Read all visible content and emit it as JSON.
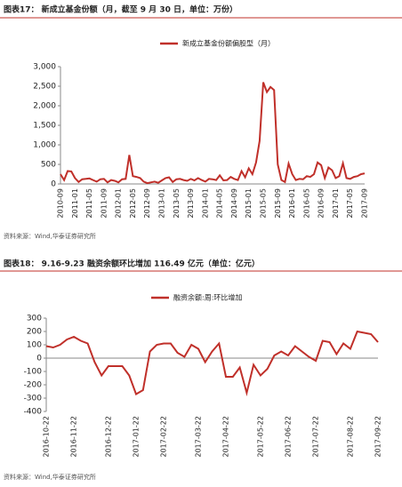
{
  "chart_data": [
    {
      "type": "line",
      "title": "图表17：  新成立基金份额（月，截至 9 月 30 日，单位：万份）",
      "source": "资料来源：Wind,华泰证券研究所",
      "categories": [
        "2010-09",
        null,
        null,
        null,
        "2011-01",
        null,
        null,
        null,
        "2011-05",
        null,
        null,
        null,
        "2011-09",
        null,
        null,
        null,
        "2012-01",
        null,
        null,
        null,
        "2012-05",
        null,
        null,
        null,
        "2012-09",
        null,
        null,
        null,
        "2013-01",
        null,
        null,
        null,
        "2013-05",
        null,
        null,
        null,
        "2013-09",
        null,
        null,
        null,
        "2014-01",
        null,
        null,
        null,
        "2014-05",
        null,
        null,
        null,
        "2014-09",
        null,
        null,
        null,
        "2015-01",
        null,
        null,
        null,
        "2015-05",
        null,
        null,
        null,
        "2015-09",
        null,
        null,
        null,
        "2016-01",
        null,
        null,
        null,
        "2016-05",
        null,
        null,
        null,
        "2016-09",
        null,
        null,
        null,
        "2017-01",
        null,
        null,
        null,
        "2017-05",
        null,
        null,
        null,
        "2017-09"
      ],
      "series": [
        {
          "name": "新成立基金份额偏股型（月）",
          "color": "#c0302a",
          "values": [
            250,
            100,
            330,
            320,
            150,
            50,
            120,
            130,
            140,
            100,
            60,
            120,
            130,
            40,
            100,
            80,
            40,
            120,
            130,
            740,
            200,
            180,
            150,
            60,
            20,
            40,
            60,
            30,
            90,
            150,
            170,
            50,
            120,
            130,
            100,
            80,
            130,
            90,
            150,
            100,
            60,
            130,
            120,
            100,
            220,
            90,
            100,
            180,
            130,
            100,
            330,
            170,
            400,
            250,
            550,
            1100,
            2600,
            2350,
            2480,
            2400,
            500,
            100,
            50,
            520,
            250,
            100,
            130,
            120,
            200,
            180,
            250,
            550,
            480,
            150,
            420,
            350,
            150,
            200,
            530,
            150,
            130,
            180,
            200,
            250,
            270
          ]
        }
      ],
      "ylim": [
        0,
        3000
      ],
      "yticks": [
        0,
        500,
        {
          "value": 1000,
          "label": "1,000"
        },
        {
          "value": 1500,
          "label": "1,500"
        },
        {
          "value": 2000,
          "label": "2,000"
        },
        {
          "value": 2500,
          "label": "2,500"
        },
        {
          "value": 3000,
          "label": "3,000"
        }
      ]
    },
    {
      "type": "line",
      "title": "图表18：  9.16-9.23 融资余额环比增加 116.49 亿元（单位：亿元）",
      "source": "资料来源：Wind,华泰证券研究所",
      "categories": [
        "2016-10-22",
        null,
        null,
        null,
        "2016-11-22",
        null,
        null,
        null,
        null,
        "2016-12-22",
        null,
        null,
        null,
        "2017-01-22",
        null,
        null,
        null,
        "2017-02-22",
        null,
        null,
        null,
        null,
        "2017-03-22",
        null,
        null,
        null,
        "2017-04-22",
        null,
        null,
        null,
        null,
        "2017-05-22",
        null,
        null,
        null,
        "2017-06-22",
        null,
        null,
        null,
        "2017-07-22",
        null,
        null,
        null,
        null,
        "2017-08-22",
        null,
        null,
        null,
        "2017-09-22"
      ],
      "series": [
        {
          "name": "融资余额:周:环比增加",
          "color": "#c0302a",
          "values": [
            90,
            80,
            100,
            140,
            160,
            130,
            110,
            -30,
            -130,
            -60,
            -60,
            -60,
            -130,
            -270,
            -240,
            50,
            100,
            110,
            110,
            40,
            10,
            100,
            70,
            -30,
            50,
            110,
            -140,
            -140,
            -70,
            -260,
            -50,
            -130,
            -80,
            20,
            50,
            20,
            90,
            50,
            10,
            -20,
            130,
            120,
            30,
            110,
            70,
            200,
            190,
            180,
            120
          ]
        }
      ],
      "ylim": [
        -400,
        300
      ],
      "yticks": [
        -400,
        -300,
        -200,
        -100,
        0,
        100,
        200,
        300
      ]
    }
  ]
}
